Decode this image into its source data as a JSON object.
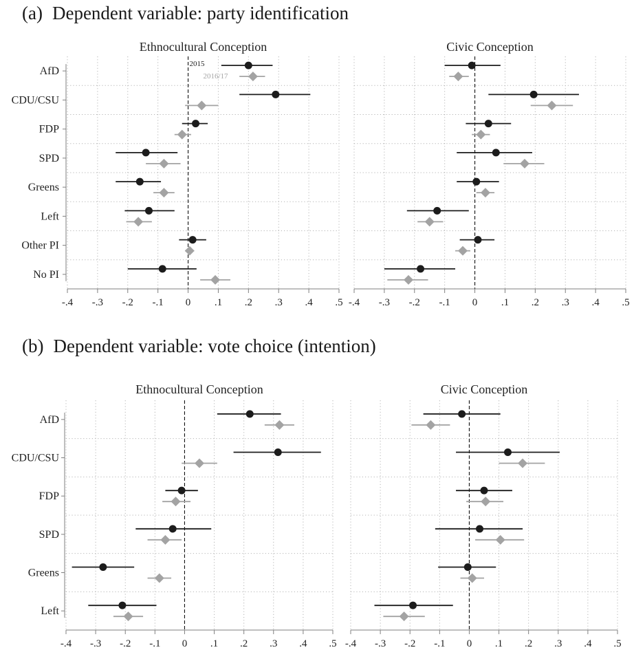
{
  "panels": [
    {
      "tag": "(a)",
      "title": "Dependent variable: party identification"
    },
    {
      "tag": "(b)",
      "title": "Dependent variable: vote choice (intention)"
    }
  ],
  "legend": [
    "2015",
    "2016/17"
  ],
  "colors": {
    "s2015": "#1c1c1c",
    "s2016": "#a3a3a3",
    "axis": "#7f7f7f",
    "grid": "#b4b4b4",
    "text": "#222222"
  },
  "chart_data": [
    {
      "type": "scatter",
      "panel": "a",
      "title": "Ethnocultural Conception",
      "categories": [
        "AfD",
        "CDU/CSU",
        "FDP",
        "SPD",
        "Greens",
        "Left",
        "Other PI",
        "No PI"
      ],
      "xlim": [
        -0.4,
        0.5
      ],
      "xticks": [
        -0.4,
        -0.3,
        -0.2,
        -0.1,
        0,
        0.1,
        0.2,
        0.3,
        0.4,
        0.5
      ],
      "xtick_labels": [
        "-.4",
        "-.3",
        "-.2",
        "-.1",
        "0",
        ".1",
        ".2",
        ".3",
        ".4",
        ".5"
      ],
      "series": [
        {
          "name": "2015",
          "marker": "circle",
          "values": [
            0.2,
            0.29,
            0.025,
            -0.14,
            -0.16,
            -0.13,
            0.015,
            -0.085
          ],
          "lower": [
            0.11,
            0.17,
            -0.02,
            -0.24,
            -0.24,
            -0.21,
            -0.03,
            -0.2
          ],
          "upper": [
            0.28,
            0.405,
            0.065,
            -0.035,
            -0.09,
            -0.045,
            0.06,
            0.028
          ]
        },
        {
          "name": "2016/17",
          "marker": "diamond",
          "values": [
            0.215,
            0.045,
            -0.02,
            -0.08,
            -0.08,
            -0.165,
            0.005,
            0.09
          ],
          "lower": [
            0.17,
            -0.01,
            -0.045,
            -0.14,
            -0.115,
            -0.205,
            -0.01,
            0.04
          ],
          "upper": [
            0.255,
            0.1,
            0.01,
            -0.025,
            -0.045,
            -0.12,
            0.02,
            0.14
          ]
        }
      ],
      "grid": true
    },
    {
      "type": "scatter",
      "panel": "a",
      "title": "Civic Conception",
      "categories": [
        "AfD",
        "CDU/CSU",
        "FDP",
        "SPD",
        "Greens",
        "Left",
        "Other PI",
        "No PI"
      ],
      "xlim": [
        -0.4,
        0.5
      ],
      "xticks": [
        -0.4,
        -0.3,
        -0.2,
        -0.1,
        0,
        0.1,
        0.2,
        0.3,
        0.4,
        0.5
      ],
      "xtick_labels": [
        "-.4",
        "-.3",
        "-.2",
        "-.1",
        "0",
        ".1",
        ".2",
        ".3",
        ".4",
        ".5"
      ],
      "series": [
        {
          "name": "2015",
          "marker": "circle",
          "values": [
            -0.01,
            0.195,
            0.045,
            0.07,
            0.005,
            -0.125,
            0.01,
            -0.18
          ],
          "lower": [
            -0.1,
            0.045,
            -0.03,
            -0.06,
            -0.06,
            -0.225,
            -0.05,
            -0.3
          ],
          "upper": [
            0.085,
            0.345,
            0.12,
            0.19,
            0.08,
            -0.02,
            0.065,
            -0.065
          ]
        },
        {
          "name": "2016/17",
          "marker": "diamond",
          "values": [
            -0.055,
            0.255,
            0.02,
            0.165,
            0.035,
            -0.15,
            -0.04,
            -0.22
          ],
          "lower": [
            -0.085,
            0.185,
            -0.01,
            0.095,
            0.005,
            -0.19,
            -0.065,
            -0.29
          ],
          "upper": [
            -0.02,
            0.325,
            0.05,
            0.23,
            0.065,
            -0.105,
            -0.015,
            -0.155
          ]
        }
      ],
      "grid": true
    },
    {
      "type": "scatter",
      "panel": "b",
      "title": "Ethnocultural Conception",
      "categories": [
        "AfD",
        "CDU/CSU",
        "FDP",
        "SPD",
        "Greens",
        "Left"
      ],
      "xlim": [
        -0.4,
        0.5
      ],
      "xticks": [
        -0.4,
        -0.3,
        -0.2,
        -0.1,
        0,
        0.1,
        0.2,
        0.3,
        0.4,
        0.5
      ],
      "xtick_labels": [
        "-.4",
        "-.3",
        "-.2",
        "-.1",
        "0",
        ".1",
        ".2",
        ".3",
        ".4",
        ".5"
      ],
      "series": [
        {
          "name": "2015",
          "marker": "circle",
          "values": [
            0.22,
            0.315,
            -0.01,
            -0.04,
            -0.275,
            -0.21
          ],
          "lower": [
            0.11,
            0.165,
            -0.065,
            -0.165,
            -0.38,
            -0.325
          ],
          "upper": [
            0.325,
            0.46,
            0.045,
            0.09,
            -0.17,
            -0.095
          ]
        },
        {
          "name": "2016/17",
          "marker": "diamond",
          "values": [
            0.32,
            0.05,
            -0.03,
            -0.065,
            -0.085,
            -0.19
          ],
          "lower": [
            0.27,
            -0.01,
            -0.075,
            -0.125,
            -0.125,
            -0.24
          ],
          "upper": [
            0.37,
            0.11,
            0.02,
            -0.01,
            -0.045,
            -0.14
          ]
        }
      ],
      "grid": true
    },
    {
      "type": "scatter",
      "panel": "b",
      "title": "Civic Conception",
      "categories": [
        "AfD",
        "CDU/CSU",
        "FDP",
        "SPD",
        "Greens",
        "Left"
      ],
      "xlim": [
        -0.4,
        0.5
      ],
      "xticks": [
        -0.4,
        -0.3,
        -0.2,
        -0.1,
        0,
        0.1,
        0.2,
        0.3,
        0.4,
        0.5
      ],
      "xtick_labels": [
        "-.4",
        "-.3",
        "-.2",
        "-.1",
        "0",
        ".1",
        ".2",
        ".3",
        ".4",
        ".5"
      ],
      "series": [
        {
          "name": "2015",
          "marker": "circle",
          "values": [
            -0.025,
            0.13,
            0.05,
            0.035,
            -0.005,
            -0.19
          ],
          "lower": [
            -0.155,
            -0.045,
            -0.045,
            -0.115,
            -0.105,
            -0.32
          ],
          "upper": [
            0.105,
            0.305,
            0.145,
            0.18,
            0.09,
            -0.055
          ]
        },
        {
          "name": "2016/17",
          "marker": "diamond",
          "values": [
            -0.13,
            0.18,
            0.055,
            0.105,
            0.01,
            -0.22
          ],
          "lower": [
            -0.195,
            0.1,
            -0.01,
            0.02,
            -0.03,
            -0.29
          ],
          "upper": [
            -0.065,
            0.255,
            0.115,
            0.185,
            0.05,
            -0.15
          ]
        }
      ],
      "grid": true
    }
  ]
}
